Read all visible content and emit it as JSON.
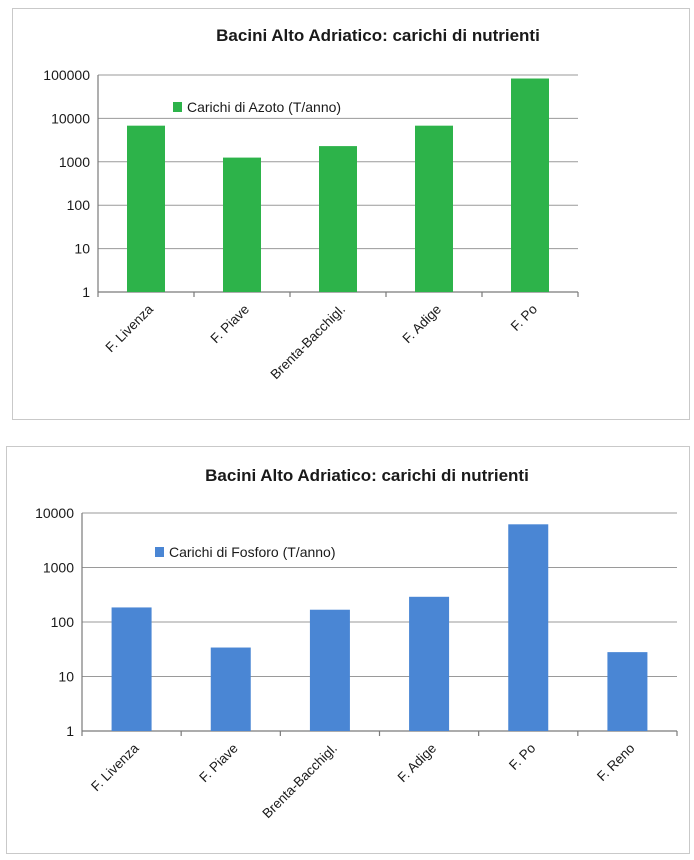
{
  "chart_data": [
    {
      "type": "bar",
      "title": "Bacini Alto Adriatico: carichi di nutrienti",
      "categories": [
        "F. Livenza",
        "F. Piave",
        "Brenta-Bacchigl.",
        "F. Adige",
        "F. Po"
      ],
      "series": [
        {
          "name": "Carichi di Azoto (T/anno)",
          "values": [
            6800,
            1250,
            2300,
            6800,
            83000
          ],
          "color": "#2db34a"
        }
      ],
      "yscale": "log",
      "ylim": [
        1,
        100000
      ],
      "yticks": [
        "1",
        "10",
        "100",
        "1000",
        "10000",
        "100000"
      ],
      "grid": true,
      "legend_position": "top-left"
    },
    {
      "type": "bar",
      "title": "Bacini Alto Adriatico: carichi di nutrienti",
      "categories": [
        "F. Livenza",
        "F. Piave",
        "Brenta-Bacchigl.",
        "F. Adige",
        "F. Po",
        "F. Reno"
      ],
      "series": [
        {
          "name": "Carichi di Fosforo (T/anno)",
          "values": [
            185,
            34,
            168,
            290,
            6200,
            28
          ],
          "color": "#4a86d4"
        }
      ],
      "yscale": "log",
      "ylim": [
        1,
        10000
      ],
      "yticks": [
        "1",
        "10",
        "100",
        "1000",
        "10000"
      ],
      "grid": true,
      "legend_position": "top-left"
    }
  ]
}
